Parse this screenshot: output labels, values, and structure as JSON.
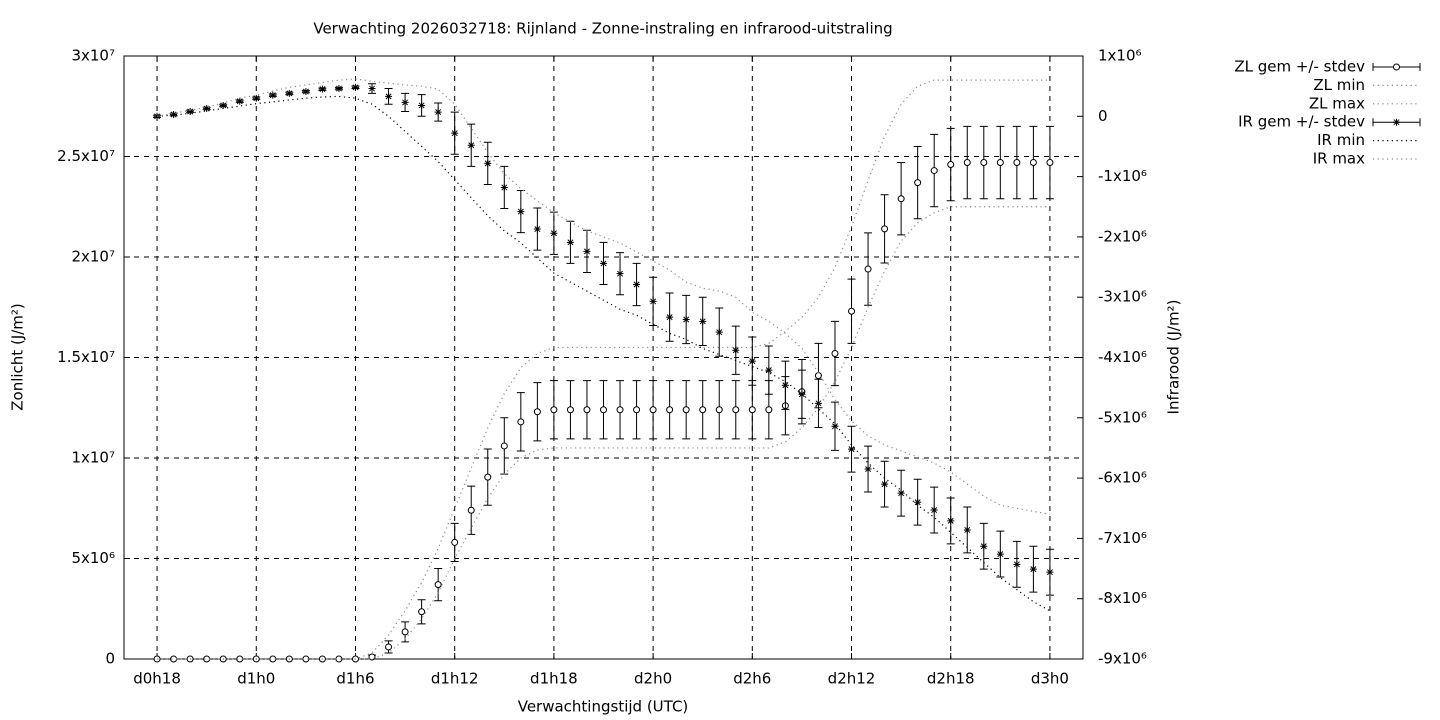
{
  "chart_data": {
    "type": "errorbars",
    "title": "Verwachting 2026032718: Rijnland - Zonne-instraling en infrarood-uitstraling",
    "x_label": "Verwachtingstijd (UTC)",
    "y_label": "Zonlicht (J/m²)",
    "y2_label": "Infrarood (J/m²)",
    "grid": true,
    "legend": "top right",
    "x": [
      0,
      1,
      2,
      3,
      4,
      5,
      6,
      7,
      8,
      9,
      10,
      11,
      12,
      13,
      14,
      15,
      16,
      17,
      18,
      19,
      20,
      21,
      22,
      23,
      24,
      25,
      26,
      27,
      28,
      29,
      30,
      31,
      32,
      33,
      34,
      35,
      36,
      37,
      38,
      39,
      40,
      41,
      42,
      43,
      44,
      45,
      46,
      47,
      48,
      49,
      50,
      51,
      52,
      53,
      54
    ],
    "xlim": [
      -2,
      56
    ],
    "xticks": [
      {
        "value": 0,
        "label": "d0h18"
      },
      {
        "value": 6,
        "label": "d1h0"
      },
      {
        "value": 12,
        "label": "d1h6"
      },
      {
        "value": 18,
        "label": "d1h12"
      },
      {
        "value": 24,
        "label": "d1h18"
      },
      {
        "value": 30,
        "label": "d2h0"
      },
      {
        "value": 36,
        "label": "d2h6"
      },
      {
        "value": 42,
        "label": "d2h12"
      },
      {
        "value": 48,
        "label": "d2h18"
      },
      {
        "value": 54,
        "label": "d3h0"
      }
    ],
    "ylim": [
      0,
      30000000
    ],
    "yticks": [
      0,
      {
        "value": 5000000,
        "label": "5x10⁶"
      },
      {
        "value": 10000000,
        "label": "1x10⁷"
      },
      {
        "value": 15000000,
        "label": "1.5x10⁷"
      },
      {
        "value": 20000000,
        "label": "2x10⁷"
      },
      {
        "value": 25000000,
        "label": "2.5x10⁷"
      },
      {
        "value": 30000000,
        "label": "3x10⁷"
      }
    ],
    "y2lim": [
      -9000000,
      1000000
    ],
    "y2ticks": [
      {
        "value": -9000000,
        "label": "-9x10⁶"
      },
      {
        "value": -8000000,
        "label": "-8x10⁶"
      },
      {
        "value": -7000000,
        "label": "-7x10⁶"
      },
      {
        "value": -6000000,
        "label": "-6x10⁶"
      },
      {
        "value": -5000000,
        "label": "-5x10⁶"
      },
      {
        "value": -4000000,
        "label": "-4x10⁶"
      },
      {
        "value": -3000000,
        "label": "-3x10⁶"
      },
      {
        "value": -2000000,
        "label": "-2x10⁶"
      },
      {
        "value": -1000000,
        "label": "-1x10⁶"
      },
      0,
      {
        "value": 1000000,
        "label": "1x10⁶"
      }
    ],
    "series": [
      {
        "name": "ZL gem +/- stdev",
        "style": "errorbars",
        "marker": "circle",
        "color": "#000000",
        "axis": "y",
        "values": [
          0,
          0,
          0,
          0,
          0,
          0,
          0,
          0,
          0,
          0,
          0,
          0,
          0,
          100000.0,
          600000.0,
          1350000.0,
          2350000.0,
          3700000.0,
          5800000.0,
          7400000.0,
          9050000.0,
          10600000.0,
          11800000.0,
          12300000.0,
          12400000.0,
          12400000.0,
          12400000.0,
          12400000.0,
          12400000.0,
          12400000.0,
          12400000.0,
          12400000.0,
          12400000.0,
          12400000.0,
          12400000.0,
          12400000.0,
          12400000.0,
          12400000.0,
          12600000.0,
          13300000.0,
          14100000.0,
          15200000.0,
          17300000.0,
          19400000.0,
          21400000.0,
          22900000.0,
          23700000.0,
          24300000.0,
          24600000.0,
          24700000.0,
          24700000.0,
          24700000.0,
          24700000.0,
          24700000.0,
          24700000.0
        ],
        "errors": [
          0,
          0,
          0,
          0,
          0,
          0,
          0,
          0,
          0,
          0,
          0,
          0,
          0,
          100000.0,
          300000.0,
          500000.0,
          600000.0,
          800000.0,
          950000.0,
          1200000.0,
          1400000.0,
          1400000.0,
          1450000.0,
          1450000.0,
          1450000.0,
          1450000.0,
          1450000.0,
          1450000.0,
          1450000.0,
          1450000.0,
          1450000.0,
          1450000.0,
          1450000.0,
          1450000.0,
          1450000.0,
          1450000.0,
          1450000.0,
          1450000.0,
          1450000.0,
          1600000.0,
          1600000.0,
          1600000.0,
          1600000.0,
          1800000.0,
          1700000.0,
          1800000.0,
          1800000.0,
          1800000.0,
          1800000.0,
          1800000.0,
          1800000.0,
          1800000.0,
          1800000.0,
          1800000.0,
          1800000.0
        ]
      },
      {
        "name": "ZL min",
        "style": "dotted",
        "color": "#8a8a8a",
        "axis": "y",
        "values": [
          0,
          0,
          0,
          0,
          0,
          0,
          0,
          0,
          0,
          0,
          0,
          0,
          0,
          0,
          300000.0,
          1000000.0,
          2000000.0,
          3300000.0,
          5000000.0,
          6500000.0,
          8000000.0,
          9200000.0,
          10000000.0,
          10400000.0,
          10500000.0,
          10500000.0,
          10500000.0,
          10500000.0,
          10500000.0,
          10500000.0,
          10500000.0,
          10500000.0,
          10500000.0,
          10500000.0,
          10500000.0,
          10500000.0,
          10500000.0,
          10500000.0,
          10800000.0,
          11500000.0,
          12500000.0,
          13800000.0,
          15500000.0,
          17500000.0,
          19300000.0,
          20800000.0,
          21700000.0,
          22200000.0,
          22500000.0,
          22500000.0,
          22500000.0,
          22500000.0,
          22500000.0,
          22500000.0,
          22500000.0
        ]
      },
      {
        "name": "ZL max",
        "style": "dotted",
        "color": "#8a8a8a",
        "axis": "y",
        "values": [
          0,
          0,
          0,
          0,
          0,
          0,
          0,
          0,
          0,
          0,
          0,
          0,
          0,
          300000.0,
          1200000.0,
          2400000.0,
          3800000.0,
          5500000.0,
          7500000.0,
          9500000.0,
          11500000.0,
          13200000.0,
          14500000.0,
          15200000.0,
          15500000.0,
          15500000.0,
          15500000.0,
          15500000.0,
          15500000.0,
          15500000.0,
          15500000.0,
          15500000.0,
          15500000.0,
          15500000.0,
          15500000.0,
          15500000.0,
          15500000.0,
          15700000.0,
          16300000.0,
          17000000.0,
          18000000.0,
          19500000.0,
          21500000.0,
          23800000.0,
          26000000.0,
          27600000.0,
          28500000.0,
          28800000.0,
          28800000.0,
          28800000.0,
          28800000.0,
          28800000.0,
          28800000.0,
          28800000.0,
          28800000.0
        ]
      },
      {
        "name": "IR gem +/- stdev",
        "style": "errorbars",
        "marker": "asterisk",
        "color": "#000000",
        "axis": "y2",
        "values": [
          0,
          30000.0,
          80000.0,
          130000.0,
          180000.0,
          250000.0,
          300000.0,
          350000.0,
          380000.0,
          410000.0,
          450000.0,
          460000.0,
          480000.0,
          460000.0,
          330000.0,
          230000.0,
          180000.0,
          70000.0,
          -280000.0,
          -480000.0,
          -780000.0,
          -1180000.0,
          -1580000.0,
          -1870000.0,
          -1940000.0,
          -2090000.0,
          -2240000.0,
          -2440000.0,
          -2610000.0,
          -2790000.0,
          -3070000.0,
          -3330000.0,
          -3370000.0,
          -3400000.0,
          -3580000.0,
          -3880000.0,
          -4060000.0,
          -4210000.0,
          -4460000.0,
          -4610000.0,
          -4760000.0,
          -5140000.0,
          -5520000.0,
          -5850000.0,
          -6100000.0,
          -6250000.0,
          -6400000.0,
          -6530000.0,
          -6710000.0,
          -6860000.0,
          -7130000.0,
          -7260000.0,
          -7430000.0,
          -7510000.0,
          -7560000.0
        ],
        "errors": [
          20000.0,
          20000.0,
          20000.0,
          20000.0,
          20000.0,
          20000.0,
          20000.0,
          20000.0,
          20000.0,
          20000.0,
          20000.0,
          20000.0,
          20000.0,
          80000.0,
          130000.0,
          150000.0,
          180000.0,
          150000.0,
          350000.0,
          350000.0,
          350000.0,
          350000.0,
          350000.0,
          350000.0,
          350000.0,
          350000.0,
          350000.0,
          350000.0,
          350000.0,
          350000.0,
          400000.0,
          400000.0,
          400000.0,
          400000.0,
          400000.0,
          400000.0,
          400000.0,
          400000.0,
          400000.0,
          400000.0,
          400000.0,
          400000.0,
          380000.0,
          380000.0,
          380000.0,
          380000.0,
          380000.0,
          380000.0,
          380000.0,
          380000.0,
          380000.0,
          380000.0,
          380000.0,
          380000.0,
          380000.0
        ]
      },
      {
        "name": "IR min",
        "style": "dotted",
        "color": "#000000",
        "axis": "y2",
        "values": [
          0,
          20000.0,
          50000.0,
          90000.0,
          130000.0,
          170000.0,
          210000.0,
          240000.0,
          270000.0,
          300000.0,
          320000.0,
          330000.0,
          300000.0,
          200000.0,
          0,
          -250000.0,
          -500000.0,
          -750000.0,
          -1050000.0,
          -1350000.0,
          -1650000.0,
          -1900000.0,
          -2100000.0,
          -2350000.0,
          -2600000.0,
          -2750000.0,
          -2900000.0,
          -3050000.0,
          -3200000.0,
          -3300000.0,
          -3450000.0,
          -3600000.0,
          -3700000.0,
          -3850000.0,
          -3950000.0,
          -4050000.0,
          -4150000.0,
          -4250000.0,
          -4400000.0,
          -4600000.0,
          -4850000.0,
          -5100000.0,
          -5450000.0,
          -5750000.0,
          -6000000.0,
          -6200000.0,
          -6450000.0,
          -6650000.0,
          -6900000.0,
          -7150000.0,
          -7400000.0,
          -7650000.0,
          -7850000.0,
          -8050000.0,
          -8200000.0
        ]
      },
      {
        "name": "IR max",
        "style": "dotted",
        "color": "#8a8a8a",
        "axis": "y2",
        "values": [
          0,
          50000.0,
          100000.0,
          150000.0,
          220000.0,
          300000.0,
          350000.0,
          420000.0,
          480000.0,
          520000.0,
          560000.0,
          600000.0,
          620000.0,
          580000.0,
          550000.0,
          520000.0,
          500000.0,
          450000.0,
          200000.0,
          -200000.0,
          -600000.0,
          -950000.0,
          -1200000.0,
          -1400000.0,
          -1600000.0,
          -1750000.0,
          -1900000.0,
          -2000000.0,
          -2100000.0,
          -2250000.0,
          -2400000.0,
          -2550000.0,
          -2750000.0,
          -2850000.0,
          -2900000.0,
          -3000000.0,
          -3250000.0,
          -3400000.0,
          -3600000.0,
          -3850000.0,
          -4250000.0,
          -4700000.0,
          -5050000.0,
          -5300000.0,
          -5450000.0,
          -5550000.0,
          -5650000.0,
          -5750000.0,
          -5900000.0,
          -6100000.0,
          -6300000.0,
          -6450000.0,
          -6500000.0,
          -6550000.0,
          -6600000.0
        ]
      }
    ]
  }
}
